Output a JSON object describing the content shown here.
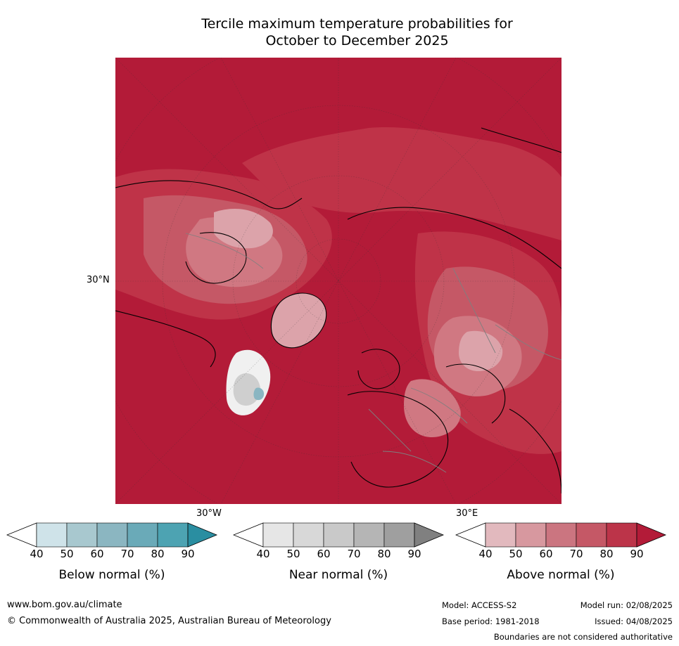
{
  "title_line1": "Tercile maximum temperature probabilities for",
  "title_line2": "October to December 2025",
  "map": {
    "lat_label": "30°N",
    "lon_label_west": "30°W",
    "lon_label_east": "30°E",
    "colors": {
      "very_high": "#b31b38",
      "high": "#bf3348",
      "mid": "#c55866",
      "low": "#d07882",
      "pale": "#dca3aa",
      "white": "#f0f0f0",
      "grey": "#cfcfcf",
      "blue": "#8ab6c2"
    }
  },
  "colorbars": [
    {
      "name": "below",
      "label": "Below normal (%)",
      "ticks": [
        "40",
        "50",
        "60",
        "70",
        "80",
        "90"
      ],
      "colors": [
        "#ffffff",
        "#cfe3e9",
        "#a8c8cf",
        "#8bb6c1",
        "#6aaab8",
        "#4da3b2",
        "#2a8ea1"
      ]
    },
    {
      "name": "near",
      "label": "Near normal (%)",
      "ticks": [
        "40",
        "50",
        "60",
        "70",
        "80",
        "90"
      ],
      "colors": [
        "#ffffff",
        "#e6e6e6",
        "#d8d8d8",
        "#c9c9c9",
        "#b5b5b5",
        "#9f9f9f",
        "#808080"
      ]
    },
    {
      "name": "above",
      "label": "Above normal (%)",
      "ticks": [
        "40",
        "50",
        "60",
        "70",
        "80",
        "90"
      ],
      "colors": [
        "#ffffff",
        "#e2b9be",
        "#d7989f",
        "#cb7580",
        "#c55866",
        "#bc3449",
        "#b31b38"
      ]
    }
  ],
  "footer": {
    "website": "www.bom.gov.au/climate",
    "copyright": "© Commonwealth of Australia 2025, Australian Bureau of Meteorology",
    "model": "Model: ACCESS-S2",
    "model_run": "Model run: 02/08/2025",
    "base_period": "Base period: 1981-2018",
    "issued": "Issued: 04/08/2025",
    "disclaimer": "Boundaries are not considered authoritative"
  }
}
